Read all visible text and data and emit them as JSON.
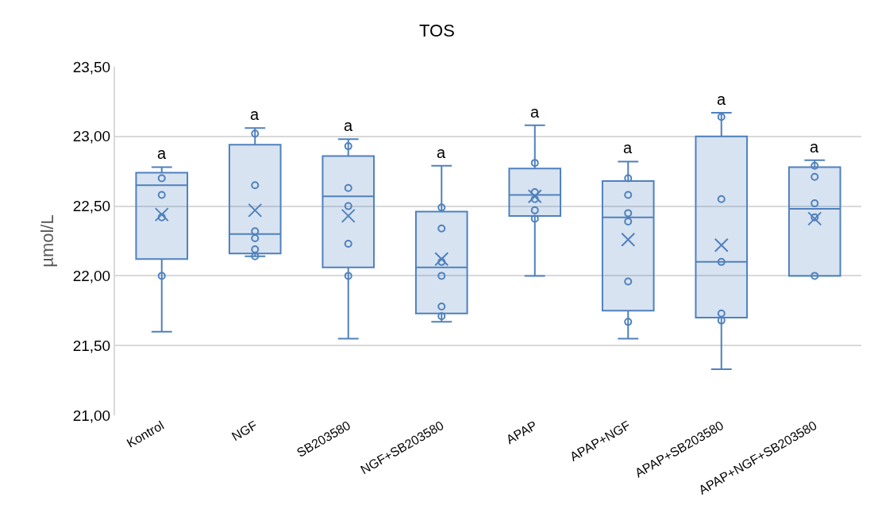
{
  "chart_data": {
    "type": "box",
    "title": "TOS",
    "ylabel": "µmol/L",
    "categories": [
      "Kontrol",
      "NGF",
      "SB203580",
      "NGF+SB203580",
      "APAP",
      "APAP+NGF",
      "APAP+SB203580",
      "APAP+NGF+SB203580"
    ],
    "ylim": [
      21,
      23.5
    ],
    "yticks": [
      {
        "value": 21,
        "label": "21,00"
      },
      {
        "value": 21.5,
        "label": "21,50"
      },
      {
        "value": 22,
        "label": "22,00"
      },
      {
        "value": 22.5,
        "label": "22,50"
      },
      {
        "value": 23,
        "label": "23,00"
      },
      {
        "value": 23.5,
        "label": "23,50"
      }
    ],
    "grid": "y",
    "series": [
      {
        "type": "box",
        "color": "#4f81bd",
        "boxes": [
          {
            "low": 21.6,
            "q1": 22.12,
            "median": 22.65,
            "q3": 22.74,
            "high": 22.78,
            "mean": 22.44
          },
          {
            "low": 22.14,
            "q1": 22.16,
            "median": 22.3,
            "q3": 22.94,
            "high": 23.06,
            "mean": 22.47
          },
          {
            "low": 21.55,
            "q1": 22.06,
            "median": 22.57,
            "q3": 22.86,
            "high": 22.98,
            "mean": 22.43
          },
          {
            "low": 21.67,
            "q1": 21.73,
            "median": 22.06,
            "q3": 22.46,
            "high": 22.79,
            "mean": 22.12
          },
          {
            "low": 22.0,
            "q1": 22.43,
            "median": 22.58,
            "q3": 22.77,
            "high": 23.08,
            "mean": 22.57
          },
          {
            "low": 21.55,
            "q1": 21.75,
            "median": 22.42,
            "q3": 22.68,
            "high": 22.82,
            "mean": 22.26
          },
          {
            "low": 21.33,
            "q1": 21.7,
            "median": 22.1,
            "q3": 23.0,
            "high": 23.17,
            "mean": 22.22
          },
          {
            "low": 22.0,
            "q1": 22.0,
            "median": 22.48,
            "q3": 22.78,
            "high": 22.83,
            "mean": 22.41
          }
        ]
      },
      {
        "type": "scatter",
        "marker": "circle",
        "color": "#4f81bd",
        "x": [
          "Kontrol",
          "Kontrol",
          "Kontrol",
          "Kontrol",
          "NGF",
          "NGF",
          "NGF",
          "NGF",
          "NGF",
          "NGF",
          "SB203580",
          "SB203580",
          "SB203580",
          "SB203580",
          "SB203580",
          "NGF+SB203580",
          "NGF+SB203580",
          "NGF+SB203580",
          "NGF+SB203580",
          "NGF+SB203580",
          "NGF+SB203580",
          "APAP",
          "APAP",
          "APAP",
          "APAP",
          "APAP",
          "APAP+NGF",
          "APAP+NGF",
          "APAP+NGF",
          "APAP+NGF",
          "APAP+NGF",
          "APAP+NGF",
          "APAP+SB203580",
          "APAP+SB203580",
          "APAP+SB203580",
          "APAP+SB203580",
          "APAP+SB203580",
          "APAP+NGF+SB203580",
          "APAP+NGF+SB203580",
          "APAP+NGF+SB203580",
          "APAP+NGF+SB203580",
          "APAP+NGF+SB203580"
        ],
        "values": [
          22.7,
          22.58,
          22.42,
          22.0,
          23.02,
          22.65,
          22.32,
          22.27,
          22.19,
          22.14,
          22.93,
          22.63,
          22.5,
          22.23,
          22.0,
          22.49,
          22.34,
          22.1,
          22.0,
          21.78,
          21.71,
          22.81,
          22.6,
          22.55,
          22.47,
          22.41,
          22.7,
          22.58,
          22.45,
          22.39,
          21.96,
          21.67,
          23.14,
          22.55,
          22.1,
          21.73,
          21.68,
          22.79,
          22.71,
          22.52,
          22.42,
          22.0
        ]
      }
    ],
    "annotations": [
      {
        "text": "a",
        "x": "Kontrol",
        "y": 22.78
      },
      {
        "text": "a",
        "x": "NGF",
        "y": 23.06
      },
      {
        "text": "a",
        "x": "SB203580",
        "y": 22.98
      },
      {
        "text": "a",
        "x": "NGF+SB203580",
        "y": 22.79
      },
      {
        "text": "a",
        "x": "APAP",
        "y": 23.08
      },
      {
        "text": "a",
        "x": "APAP+NGF",
        "y": 22.82
      },
      {
        "text": "a",
        "x": "APAP+SB203580",
        "y": 23.17
      },
      {
        "text": "a",
        "x": "APAP+NGF+SB203580",
        "y": 22.83
      }
    ]
  }
}
